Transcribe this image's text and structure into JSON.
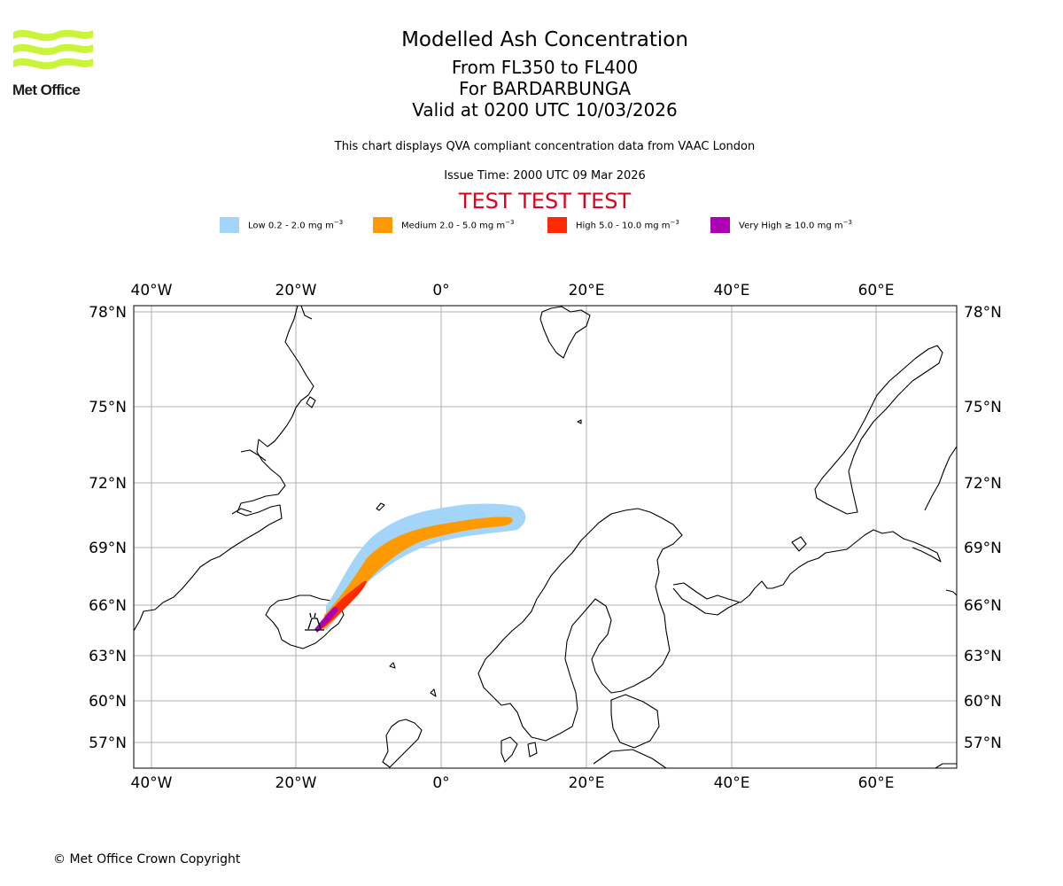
{
  "logo": {
    "text": "Met Office",
    "color": "#c8f538"
  },
  "title": {
    "main": "Modelled Ash Concentration",
    "levels": "From FL350 to FL400",
    "volcano": "For BARDARBUNGA",
    "valid": "Valid at 0200 UTC 10/03/2026"
  },
  "description": "This chart displays QVA compliant concentration data from VAAC London",
  "issue_time": "Issue Time: 2000 UTC 09 Mar 2026",
  "test_banner": "TEST TEST TEST",
  "legend": [
    {
      "label": "Low 0.2 - 2.0 mg m",
      "exp": "−3",
      "color": "#a3d4fa"
    },
    {
      "label": "Medium 2.0 - 5.0 mg m",
      "exp": "−3",
      "color": "#ff9900"
    },
    {
      "label": "High 5.0 - 10.0 mg m",
      "exp": "−3",
      "color": "#ff2a00"
    },
    {
      "label": "Very High  ≥  10.0 mg m",
      "exp": "−3",
      "color": "#ad00b5"
    }
  ],
  "axes": {
    "lon_labels": [
      "40°W",
      "20°W",
      "0°",
      "20°E",
      "40°E",
      "60°E"
    ],
    "lat_labels": [
      "78°N",
      "75°N",
      "72°N",
      "69°N",
      "66°N",
      "63°N",
      "60°N",
      "57°N"
    ]
  },
  "copyright": "© Met Office Crown Copyright"
}
